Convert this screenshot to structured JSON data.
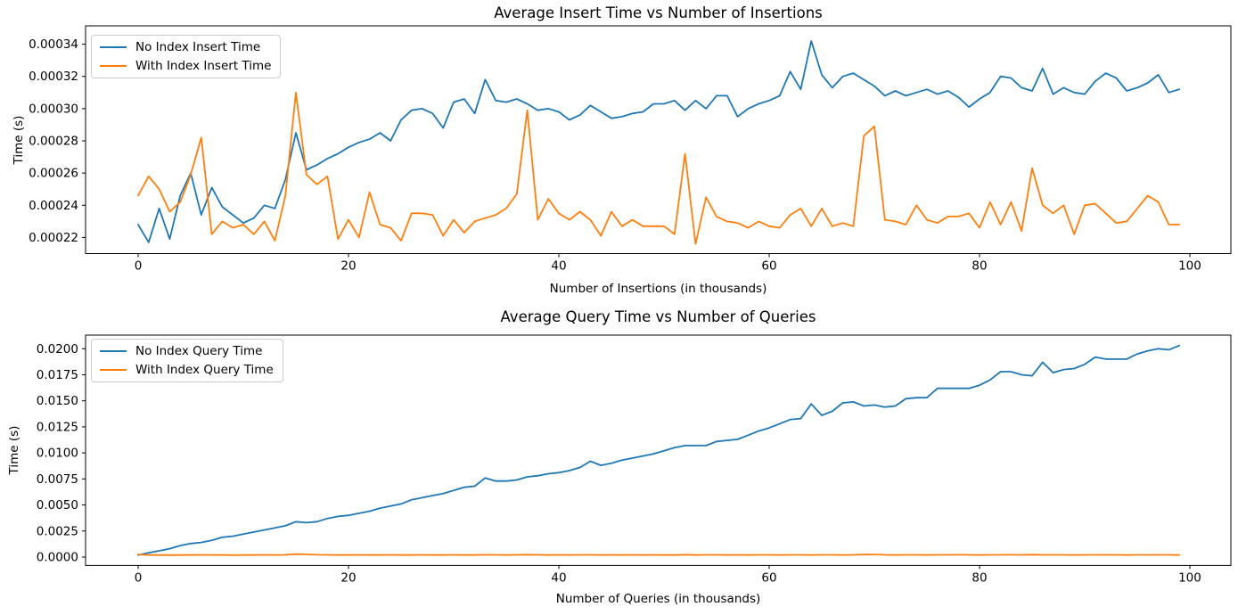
{
  "page": {
    "background": "#ffffff"
  },
  "colors": {
    "series_blue": "#1f77b4",
    "series_orange": "#ff7f0e",
    "spine": "#000000",
    "legend_border": "#cccccc"
  },
  "chart_data": [
    {
      "type": "line",
      "title": "Average Insert Time vs Number of Insertions",
      "xlabel": "Number of Insertions (in thousands)",
      "ylabel": "Time (s)",
      "legend_position": "upper left",
      "grid": false,
      "xlim": [
        -5,
        103.9
      ],
      "ylim": [
        0.00021,
        0.0003514
      ],
      "xticks": [
        0,
        20,
        40,
        60,
        80,
        100
      ],
      "xtick_labels": [
        "0",
        "20",
        "40",
        "60",
        "80",
        "100"
      ],
      "yticks": [
        0.00022,
        0.00024,
        0.00026,
        0.00028,
        0.0003,
        0.00032,
        0.00034
      ],
      "ytick_labels": [
        "0.00022",
        "0.00024",
        "0.00026",
        "0.00028",
        "0.00030",
        "0.00032",
        "0.00034"
      ],
      "x": [
        0,
        1,
        2,
        3,
        4,
        5,
        6,
        7,
        8,
        9,
        10,
        11,
        12,
        13,
        14,
        15,
        16,
        17,
        18,
        19,
        20,
        21,
        22,
        23,
        24,
        25,
        26,
        27,
        28,
        29,
        30,
        31,
        32,
        33,
        34,
        35,
        36,
        37,
        38,
        39,
        40,
        41,
        42,
        43,
        44,
        45,
        46,
        47,
        48,
        49,
        50,
        51,
        52,
        53,
        54,
        55,
        56,
        57,
        58,
        59,
        60,
        61,
        62,
        63,
        64,
        65,
        66,
        67,
        68,
        69,
        70,
        71,
        72,
        73,
        74,
        75,
        76,
        77,
        78,
        79,
        80,
        81,
        82,
        83,
        84,
        85,
        86,
        87,
        88,
        89,
        90,
        91,
        92,
        93,
        94,
        95,
        96,
        97,
        98,
        99
      ],
      "series": [
        {
          "name": "No Index Insert Time",
          "color": "#1f77b4",
          "values": [
            0.000228,
            0.000217,
            0.000238,
            0.000219,
            0.000246,
            0.00026,
            0.000234,
            0.000251,
            0.000239,
            0.000234,
            0.000229,
            0.000232,
            0.00024,
            0.000238,
            0.000256,
            0.000285,
            0.000262,
            0.000265,
            0.000269,
            0.000272,
            0.000276,
            0.000279,
            0.000281,
            0.000285,
            0.00028,
            0.000293,
            0.000299,
            0.0003,
            0.000297,
            0.000288,
            0.000304,
            0.000306,
            0.000297,
            0.000318,
            0.000305,
            0.000304,
            0.000306,
            0.000303,
            0.000299,
            0.0003,
            0.000298,
            0.000293,
            0.000296,
            0.000302,
            0.000298,
            0.000294,
            0.000295,
            0.000297,
            0.000298,
            0.000303,
            0.000303,
            0.000305,
            0.000299,
            0.000305,
            0.0003,
            0.000308,
            0.000308,
            0.000295,
            0.0003,
            0.000303,
            0.000305,
            0.000308,
            0.000323,
            0.000312,
            0.000342,
            0.000321,
            0.000313,
            0.00032,
            0.000322,
            0.000318,
            0.000314,
            0.000308,
            0.000311,
            0.000308,
            0.00031,
            0.000312,
            0.000309,
            0.000311,
            0.000307,
            0.000301,
            0.000306,
            0.00031,
            0.00032,
            0.000319,
            0.000313,
            0.000311,
            0.000325,
            0.000309,
            0.000313,
            0.00031,
            0.000309,
            0.000317,
            0.000322,
            0.000319,
            0.000311,
            0.000313,
            0.000316,
            0.000321,
            0.00031,
            0.000312
          ]
        },
        {
          "name": "With Index Insert Time",
          "color": "#ff7f0e",
          "values": [
            0.000246,
            0.000258,
            0.00025,
            0.000236,
            0.000242,
            0.000259,
            0.000282,
            0.000222,
            0.00023,
            0.000226,
            0.000228,
            0.000222,
            0.00023,
            0.000218,
            0.000246,
            0.00031,
            0.000259,
            0.000253,
            0.000258,
            0.000219,
            0.000231,
            0.00022,
            0.000248,
            0.000228,
            0.000226,
            0.000218,
            0.000235,
            0.000235,
            0.000234,
            0.000221,
            0.000231,
            0.000223,
            0.00023,
            0.000232,
            0.000234,
            0.000238,
            0.000247,
            0.000299,
            0.000231,
            0.000244,
            0.000235,
            0.000231,
            0.000236,
            0.000231,
            0.000221,
            0.000236,
            0.000227,
            0.000231,
            0.000227,
            0.000227,
            0.000227,
            0.000222,
            0.000272,
            0.000216,
            0.000245,
            0.000233,
            0.00023,
            0.000229,
            0.000226,
            0.00023,
            0.000227,
            0.000226,
            0.000234,
            0.000238,
            0.000227,
            0.000238,
            0.000227,
            0.000229,
            0.000227,
            0.000283,
            0.000289,
            0.000231,
            0.00023,
            0.000228,
            0.00024,
            0.000231,
            0.000229,
            0.000233,
            0.000233,
            0.000235,
            0.000226,
            0.000242,
            0.000228,
            0.000242,
            0.000224,
            0.000263,
            0.00024,
            0.000235,
            0.00024,
            0.000222,
            0.00024,
            0.000241,
            0.000235,
            0.000229,
            0.00023,
            0.000238,
            0.000246,
            0.000242,
            0.000228,
            0.000228
          ]
        }
      ]
    },
    {
      "type": "line",
      "title": "Average Query Time vs Number of Queries",
      "xlabel": "Number of Queries (in thousands)",
      "ylabel": "Time (s)",
      "legend_position": "upper left",
      "grid": false,
      "xlim": [
        -5,
        103.9
      ],
      "ylim": [
        -0.000805,
        0.021305
      ],
      "xticks": [
        0,
        20,
        40,
        60,
        80,
        100
      ],
      "xtick_labels": [
        "0",
        "20",
        "40",
        "60",
        "80",
        "100"
      ],
      "yticks": [
        0.0,
        0.0025,
        0.005,
        0.0075,
        0.01,
        0.0125,
        0.015,
        0.0175,
        0.02
      ],
      "ytick_labels": [
        "0.0000",
        "0.0025",
        "0.0050",
        "0.0075",
        "0.0100",
        "0.0125",
        "0.0150",
        "0.0175",
        "0.0200"
      ],
      "x": [
        0,
        1,
        2,
        3,
        4,
        5,
        6,
        7,
        8,
        9,
        10,
        11,
        12,
        13,
        14,
        15,
        16,
        17,
        18,
        19,
        20,
        21,
        22,
        23,
        24,
        25,
        26,
        27,
        28,
        29,
        30,
        31,
        32,
        33,
        34,
        35,
        36,
        37,
        38,
        39,
        40,
        41,
        42,
        43,
        44,
        45,
        46,
        47,
        48,
        49,
        50,
        51,
        52,
        53,
        54,
        55,
        56,
        57,
        58,
        59,
        60,
        61,
        62,
        63,
        64,
        65,
        66,
        67,
        68,
        69,
        70,
        71,
        72,
        73,
        74,
        75,
        76,
        77,
        78,
        79,
        80,
        81,
        82,
        83,
        84,
        85,
        86,
        87,
        88,
        89,
        90,
        91,
        92,
        93,
        94,
        95,
        96,
        97,
        98,
        99
      ],
      "series": [
        {
          "name": "No Index Query Time",
          "color": "#1f77b4",
          "values": [
            0.0002,
            0.0004,
            0.0006,
            0.0008,
            0.0011,
            0.0013,
            0.0014,
            0.0016,
            0.0019,
            0.002,
            0.0022,
            0.0024,
            0.0026,
            0.0028,
            0.003,
            0.0034,
            0.0033,
            0.0034,
            0.0037,
            0.0039,
            0.004,
            0.0042,
            0.0044,
            0.0047,
            0.0049,
            0.0051,
            0.0055,
            0.0057,
            0.0059,
            0.0061,
            0.0064,
            0.0067,
            0.0068,
            0.0076,
            0.0073,
            0.0073,
            0.0074,
            0.0077,
            0.0078,
            0.008,
            0.0081,
            0.0083,
            0.0086,
            0.0092,
            0.0088,
            0.009,
            0.0093,
            0.0095,
            0.0097,
            0.0099,
            0.0102,
            0.0105,
            0.0107,
            0.0107,
            0.0107,
            0.0111,
            0.0112,
            0.0113,
            0.0117,
            0.0121,
            0.0124,
            0.0128,
            0.0132,
            0.0133,
            0.0147,
            0.0136,
            0.014,
            0.0148,
            0.0149,
            0.0145,
            0.0146,
            0.0144,
            0.0145,
            0.0152,
            0.0153,
            0.0153,
            0.0162,
            0.0162,
            0.0162,
            0.0162,
            0.0165,
            0.017,
            0.0178,
            0.0178,
            0.0175,
            0.0174,
            0.0187,
            0.0177,
            0.018,
            0.0181,
            0.0185,
            0.0192,
            0.019,
            0.019,
            0.019,
            0.0195,
            0.0198,
            0.02,
            0.0199,
            0.0203
          ]
        },
        {
          "name": "With Index Query Time",
          "color": "#ff7f0e",
          "values": [
            0.00025,
            0.0002,
            0.0002,
            0.00019,
            0.0002,
            0.0002,
            0.00021,
            0.0002,
            0.0002,
            0.00019,
            0.0002,
            0.0002,
            0.00021,
            0.0002,
            0.00021,
            0.00028,
            0.00026,
            0.00022,
            0.00021,
            0.0002,
            0.0002,
            0.00021,
            0.0002,
            0.0002,
            0.00021,
            0.0002,
            0.0002,
            0.00021,
            0.0002,
            0.0002,
            0.00021,
            0.0002,
            0.0002,
            0.00022,
            0.00021,
            0.0002,
            0.00021,
            0.00023,
            0.00021,
            0.0002,
            0.00021,
            0.0002,
            0.00021,
            0.00021,
            0.0002,
            0.00021,
            0.0002,
            0.00021,
            0.0002,
            0.00021,
            0.0002,
            0.0002,
            0.00022,
            0.0002,
            0.00021,
            0.00021,
            0.0002,
            0.00021,
            0.0002,
            0.00021,
            0.00021,
            0.0002,
            0.00021,
            0.00021,
            0.0002,
            0.00021,
            0.00021,
            0.0002,
            0.00021,
            0.00024,
            0.00025,
            0.00021,
            0.0002,
            0.00021,
            0.00021,
            0.0002,
            0.00021,
            0.00021,
            0.00022,
            0.00021,
            0.0002,
            0.00021,
            0.00021,
            0.00022,
            0.00021,
            0.00023,
            0.00021,
            0.00021,
            0.00021,
            0.0002,
            0.00021,
            0.00021,
            0.00021,
            0.00021,
            0.0002,
            0.00021,
            0.00021,
            0.00021,
            0.00021,
            0.0002
          ]
        }
      ]
    }
  ]
}
